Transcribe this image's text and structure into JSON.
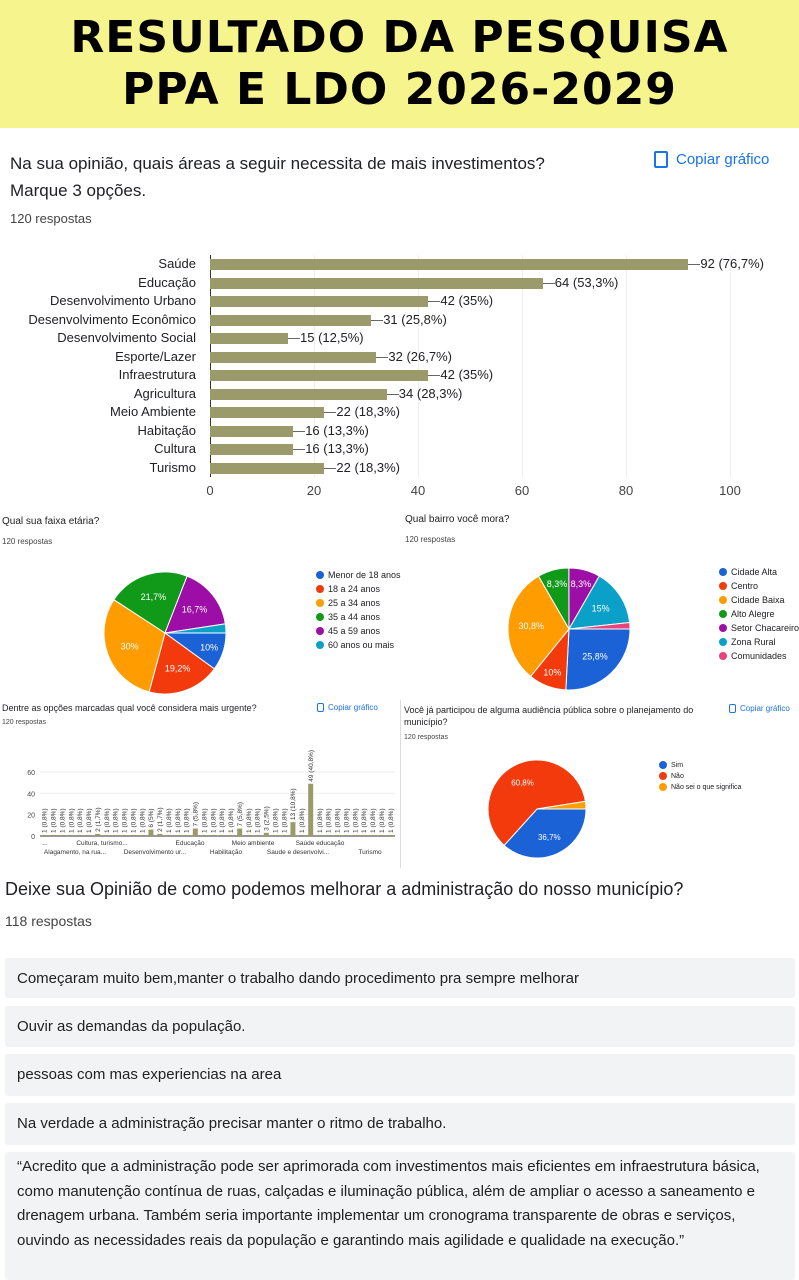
{
  "header": {
    "line1": "RESULTADO DA PESQUISA",
    "line2": "PPA E LDO 2026-2029"
  },
  "copy_label": "Copiar gráfico",
  "q1": {
    "title": "Na sua opinião, quais áreas a seguir necessita de mais investimentos?",
    "subtitle": "Marque 3 opções.",
    "responses": "120 respostas"
  },
  "chart_data": [
    {
      "type": "bar",
      "orientation": "horizontal",
      "categories": [
        "Saúde",
        "Educação",
        "Desenvolvimento Urbano",
        "Desenvolvimento Econômico",
        "Desenvolvimento Social",
        "Esporte/Lazer",
        "Infraestrutura",
        "Agricultura",
        "Meio Ambiente",
        "Habitação",
        "Cultura",
        "Turismo"
      ],
      "values": [
        92,
        64,
        42,
        31,
        15,
        32,
        42,
        34,
        22,
        16,
        16,
        22
      ],
      "labels": [
        "92 (76,7%)",
        "64 (53,3%)",
        "42 (35%)",
        "31 (25,8%)",
        "15 (12,5%)",
        "32 (26,7%)",
        "42 (35%)",
        "34 (28,3%)",
        "22 (18,3%)",
        "16 (13,3%)",
        "16 (13,3%)",
        "22 (18,3%)"
      ],
      "xlim": [
        0,
        100
      ],
      "xticks": [
        "0",
        "20",
        "40",
        "60",
        "80",
        "100"
      ],
      "color": "#9a9a6a"
    },
    {
      "type": "pie",
      "title": "Qual sua faixa etária?",
      "responses": "120 respostas",
      "categories": [
        "Menor de 18 anos",
        "18 a 24 anos",
        "25 a 34 anos",
        "35 a 44 anos",
        "45 a 59 anos",
        "60 anos ou mais"
      ],
      "values": [
        10,
        19.2,
        30,
        21.7,
        16.7,
        2.4
      ],
      "labels": [
        "10%",
        "19,2%",
        "30%",
        "21,7%",
        "16,7%",
        ""
      ],
      "colors": [
        "#1a62d6",
        "#f23a0c",
        "#ff9c00",
        "#119a1a",
        "#9c0ea6",
        "#0aa0c8"
      ]
    },
    {
      "type": "pie",
      "title": "Qual bairro você mora?",
      "responses": "120 respostas",
      "categories": [
        "Cidade Alta",
        "Centro",
        "Cidade Baixa",
        "Alto Alegre",
        "Setor Chacareiro",
        "Zona Rural",
        "Comunidades"
      ],
      "values": [
        25.8,
        10,
        30.8,
        8.3,
        8.3,
        15,
        1.7
      ],
      "labels": [
        "25,8%",
        "10%",
        "30,8%",
        "8,3%",
        "8,3%",
        "15%",
        ""
      ],
      "colors": [
        "#1a62d6",
        "#f23a0c",
        "#ff9c00",
        "#119a1a",
        "#9c0ea6",
        "#0aa0c8",
        "#e8437a"
      ]
    },
    {
      "type": "bar",
      "title": "Dentre as opções marcadas qual você considera mais urgente?",
      "responses": "120 respostas",
      "ylim": [
        0,
        60
      ],
      "yticks": [
        "0",
        "20",
        "40",
        "60"
      ],
      "values": [
        1,
        1,
        1,
        1,
        1,
        1,
        2,
        1,
        1,
        1,
        1,
        1,
        6,
        2,
        1,
        1,
        1,
        7,
        1,
        1,
        1,
        1,
        7,
        1,
        1,
        3,
        1,
        1,
        13,
        1,
        49,
        1,
        1,
        1,
        1,
        1,
        1,
        1,
        1,
        1
      ],
      "labels": [
        "1 (0,8%)",
        "1 (0,8%)",
        "1 (0,8%)",
        "1 (0,8%)",
        "1 (0,8%)",
        "1 (0,8%)",
        "2 (1,7%)",
        "1 (0,8%)",
        "1 (0,8%)",
        "1 (0,8%)",
        "1 (0,8%)",
        "1 (0,8%)",
        "6 (5%)",
        "2 (1,7%)",
        "1 (0,8%)",
        "1 (0,8%)",
        "1 (0,8%)",
        "7 (5,8%)",
        "1 (0,8%)",
        "1 (0,8%)",
        "1 (0,8%)",
        "1 (0,8%)",
        "7 (5,8%)",
        "1 (0,8%)",
        "1 (0,8%)",
        "3 (2,5%)",
        "1 (0,8%)",
        "1 (0,8%)",
        "13 (10,8%)",
        "1 (0,8%)",
        "49 (40,8%)",
        "1 (0,8%)",
        "1 (0,8%)",
        "1 (0,8%)",
        "1 (0,8%)",
        "1 (0,8%)",
        "1 (0,8%)",
        "1 (0,8%)",
        "1 (0,8%)",
        "1 (0,8%)"
      ],
      "xtick_labels": [
        "...",
        "Alagamento, na rua...",
        "Cultura, turismo...",
        "Desenvolvimento ur...",
        "Educação",
        "Habilitação",
        "Meio ambiente",
        "Saude e desenvolvi...",
        "Saúde educação",
        "Turismo"
      ],
      "color": "#9a9a6a"
    },
    {
      "type": "pie",
      "title": "Você já participou de alguma audiência pública sobre o planejamento do município?",
      "responses": "120 respostas",
      "categories": [
        "Sim",
        "Não",
        "Não sei o que significa"
      ],
      "values": [
        36.7,
        60.8,
        2.5
      ],
      "labels": [
        "36,7%",
        "60,8%",
        ""
      ],
      "colors": [
        "#1a62d6",
        "#f23a0c",
        "#ff9c00"
      ]
    }
  ],
  "q_open": {
    "title": "Deixe sua Opinião de como podemos melhorar a administração do nosso município?",
    "responses": "118 respostas",
    "answers": [
      "Começaram muito bem,manter o trabalho dando procedimento pra sempre melhorar",
      "Ouvir as demandas da população.",
      "pessoas com mas experiencias na area",
      "Na verdade a administração precisar manter o ritmo de trabalho.",
      "“Acredito que a administração pode ser aprimorada com investimentos mais eficientes em infraestrutura básica, como manutenção contínua de ruas, calçadas e iluminação pública, além de ampliar o acesso a saneamento e drenagem urbana. Também seria importante implementar um cronograma transparente de obras e serviços, ouvindo as necessidades reais da população e garantindo mais agilidade e qualidade na execução.”"
    ]
  }
}
